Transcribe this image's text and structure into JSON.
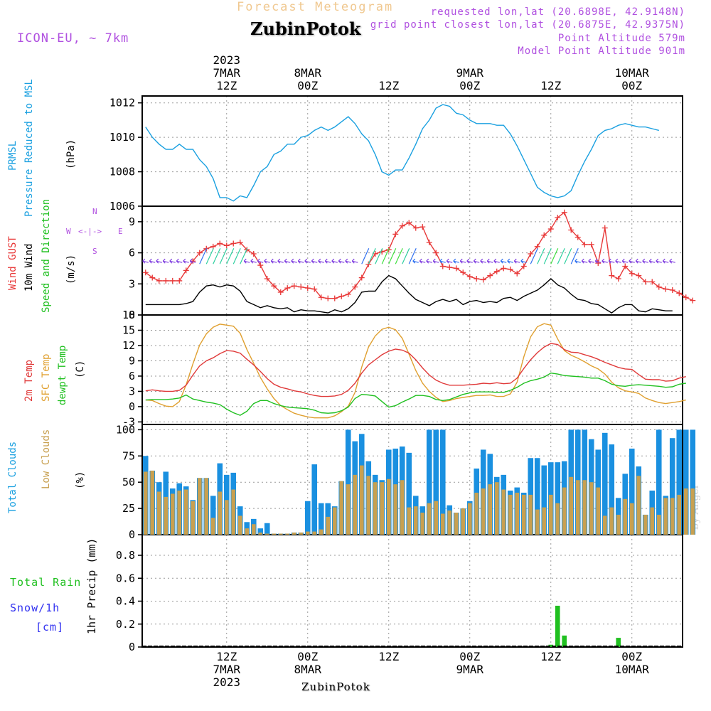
{
  "header": {
    "source": "Forecast Meteogram",
    "title": "ZubinPotok",
    "model": "ICON-EU, ~ 7km",
    "requested": "requested lon,lat (20.6898E, 42.9148N)",
    "closest": "grid point closest lon,lat (20.6875E, 42.9375N)",
    "point_alt": "Point Altitude 579m",
    "model_alt": "Model Point Altitude 901m"
  },
  "time_axis": {
    "top_labels": [
      {
        "lines": [
          "2023",
          "7MAR",
          "12Z"
        ]
      },
      {
        "lines": [
          "8MAR",
          "00Z"
        ]
      },
      {
        "lines": [
          "12Z"
        ]
      },
      {
        "lines": [
          "9MAR",
          "00Z"
        ]
      },
      {
        "lines": [
          "12Z"
        ]
      },
      {
        "lines": [
          "10MAR",
          "00Z"
        ]
      }
    ],
    "bottom_labels": [
      {
        "lines": [
          "12Z",
          "7MAR",
          "2023"
        ]
      },
      {
        "lines": [
          "00Z",
          "8MAR"
        ]
      },
      {
        "lines": [
          "12Z"
        ]
      },
      {
        "lines": [
          "00Z",
          "9MAR"
        ]
      },
      {
        "lines": [
          "12Z"
        ]
      },
      {
        "lines": [
          "00Z",
          "10MAR"
        ]
      }
    ],
    "station_label": "ZubinPotok"
  },
  "watermark": "by Angel",
  "colors": {
    "pressure": "#1aa0e0",
    "gust": "#e83838",
    "wind": "#000000",
    "t2m": "#e03a3a",
    "tsfc": "#e0a030",
    "dewpt": "#20c020",
    "total_clouds": "#1a90e0",
    "low_clouds": "#c8a050",
    "rain": "#20c020",
    "snow": "#3030f0",
    "label_purple": "#b050e0"
  },
  "panels": {
    "pressure": {
      "label1": "PRMSL",
      "label2": "Pressure Reduced to MSL",
      "unit": "(hPa)"
    },
    "wind": {
      "label_gust": "Wind GUST",
      "label_wind": "10m Wind",
      "label_dir": "Speed and Direction",
      "unit": "(m/s)",
      "compass": {
        "n": "N",
        "s": "S",
        "w": "W",
        "e": "E",
        "arrows": "<-|->"
      }
    },
    "temp": {
      "label_t2m": "2m Temp",
      "label_tsfc": "SFC Temp",
      "label_dew": "dewpt Temp",
      "unit": "(C)"
    },
    "clouds": {
      "label_total": "Total Clouds",
      "label_low": "Low Clouds",
      "unit": "(%)"
    },
    "precip": {
      "label_rain": "Total  Rain",
      "label_snow": "Snow/1h",
      "label_cm": "[cm]",
      "label_axis": "1hr Precip (mm)"
    }
  },
  "chart_data": [
    {
      "type": "line",
      "title": "PRMSL Pressure Reduced to MSL",
      "ylabel": "hPa",
      "x_hours": "0..63 (hourly from 7MAR 00Z)",
      "ylim": [
        1006,
        1012.4
      ],
      "yticks": [
        1006,
        1008,
        1010,
        1012
      ],
      "series": [
        {
          "name": "PRMSL",
          "values": [
            1010.6,
            1010.0,
            1009.6,
            1009.3,
            1009.3,
            1009.6,
            1009.3,
            1009.3,
            1008.7,
            1008.3,
            1007.6,
            1006.5,
            1006.5,
            1006.3,
            1006.6,
            1006.5,
            1007.2,
            1008.0,
            1008.3,
            1009.0,
            1009.2,
            1009.6,
            1009.6,
            1010.0,
            1010.1,
            1010.4,
            1010.6,
            1010.4,
            1010.6,
            1010.9,
            1011.2,
            1010.8,
            1010.2,
            1009.8,
            1009.0,
            1008.0,
            1007.8,
            1008.1,
            1008.1,
            1008.8,
            1009.6,
            1010.5,
            1011.0,
            1011.7,
            1011.9,
            1011.8,
            1011.4,
            1011.3,
            1011.0,
            1010.8,
            1010.8,
            1010.8,
            1010.7,
            1010.7,
            1010.2,
            1009.5,
            1008.7,
            1007.9,
            1007.1,
            1006.8,
            1006.6,
            1006.5,
            1006.6,
            1006.9,
            1007.8,
            1008.6,
            1009.3,
            1010.1,
            1010.4,
            1010.5,
            1010.7,
            1010.8,
            1010.7,
            1010.6,
            1010.6,
            1010.5,
            1010.4
          ]
        }
      ]
    },
    {
      "type": "line",
      "title": "Wind GUST / 10m Wind Speed and Direction",
      "ylabel": "m/s",
      "ylim": [
        0,
        10.5
      ],
      "yticks": [
        0,
        3,
        6,
        9
      ],
      "series": [
        {
          "name": "Wind GUST",
          "values": [
            4.1,
            3.6,
            3.3,
            3.3,
            3.3,
            3.3,
            4.3,
            5.2,
            6.0,
            6.4,
            6.6,
            6.9,
            6.7,
            6.9,
            7.0,
            6.3,
            5.9,
            4.8,
            3.5,
            2.8,
            2.2,
            2.6,
            2.8,
            2.7,
            2.6,
            2.5,
            1.7,
            1.6,
            1.6,
            1.8,
            2.0,
            2.7,
            3.6,
            4.9,
            5.9,
            6.1,
            6.3,
            7.8,
            8.6,
            8.9,
            8.4,
            8.5,
            7.0,
            6.0,
            4.7,
            4.6,
            4.5,
            4.1,
            3.7,
            3.5,
            3.4,
            3.8,
            4.2,
            4.5,
            4.4,
            4.0,
            4.7,
            5.9,
            6.6,
            7.7,
            8.3,
            9.4,
            9.9,
            8.2,
            7.5,
            6.8,
            6.8,
            5.0,
            8.4,
            3.8,
            3.5,
            4.7,
            4.0,
            3.8,
            3.2,
            3.2,
            2.7,
            2.5,
            2.4,
            2.1,
            1.7,
            1.4
          ]
        },
        {
          "name": "10m Wind",
          "values": [
            1.0,
            1.0,
            1.0,
            1.0,
            1.0,
            1.0,
            1.1,
            1.3,
            2.2,
            2.8,
            2.9,
            2.7,
            2.9,
            2.8,
            2.3,
            1.3,
            1.0,
            0.7,
            0.9,
            0.7,
            0.6,
            0.7,
            0.3,
            0.5,
            0.4,
            0.4,
            0.3,
            0.2,
            0.5,
            0.3,
            0.6,
            1.2,
            2.2,
            2.3,
            2.3,
            3.2,
            3.8,
            3.5,
            2.8,
            2.1,
            1.5,
            1.2,
            0.9,
            1.3,
            1.5,
            1.3,
            1.5,
            1.0,
            1.3,
            1.4,
            1.2,
            1.3,
            1.2,
            1.6,
            1.7,
            1.4,
            1.8,
            2.1,
            2.4,
            2.9,
            3.5,
            2.9,
            2.6,
            2.0,
            1.5,
            1.4,
            1.1,
            1.0,
            0.6,
            0.2,
            0.7,
            1.0,
            1.0,
            0.4,
            0.3,
            0.6,
            0.5,
            0.4,
            0.4
          ]
        }
      ]
    },
    {
      "type": "line",
      "title": "2m Temp / SFC Temp / dewpt Temp",
      "ylabel": "C",
      "ylim": [
        -3.5,
        18
      ],
      "yticks": [
        -3,
        0,
        3,
        6,
        9,
        12,
        15,
        18
      ],
      "series": [
        {
          "name": "2m Temp",
          "values": [
            3.1,
            3.3,
            3.1,
            3.0,
            3.0,
            3.2,
            4.2,
            6.2,
            8.0,
            9.0,
            9.6,
            10.4,
            11.0,
            10.9,
            10.5,
            9.3,
            8.2,
            6.9,
            5.5,
            4.4,
            3.8,
            3.5,
            3.1,
            2.9,
            2.5,
            2.2,
            2.0,
            2.0,
            2.1,
            2.4,
            3.2,
            4.6,
            6.6,
            8.2,
            9.2,
            10.2,
            10.9,
            11.3,
            11.1,
            10.5,
            9.2,
            7.6,
            6.2,
            5.2,
            4.6,
            4.2,
            4.2,
            4.2,
            4.3,
            4.4,
            4.6,
            4.5,
            4.7,
            4.5,
            4.6,
            5.6,
            7.5,
            9.2,
            10.6,
            11.7,
            12.4,
            12.2,
            11.2,
            10.7,
            10.6,
            10.2,
            9.8,
            9.3,
            8.7,
            8.2,
            7.7,
            7.4,
            7.3,
            6.3,
            5.4,
            5.3,
            5.3,
            5.0,
            5.1,
            5.6,
            5.9
          ]
        },
        {
          "name": "SFC Temp",
          "values": [
            1.3,
            1.2,
            0.6,
            0.1,
            0.0,
            1.0,
            4.3,
            8.4,
            12.1,
            14.3,
            15.6,
            16.2,
            16.0,
            15.8,
            14.4,
            11.2,
            8.5,
            5.7,
            3.5,
            1.6,
            0.2,
            -0.6,
            -1.3,
            -1.7,
            -2.0,
            -2.2,
            -2.2,
            -2.2,
            -1.8,
            -1.0,
            0.1,
            2.8,
            7.8,
            11.7,
            13.9,
            15.2,
            15.6,
            15.1,
            13.4,
            10.3,
            7.1,
            4.6,
            3.0,
            1.8,
            1.0,
            1.2,
            1.6,
            1.8,
            2.0,
            2.2,
            2.2,
            2.3,
            2.0,
            2.0,
            2.5,
            4.8,
            9.8,
            13.7,
            15.7,
            16.3,
            16.0,
            13.3,
            11.0,
            10.1,
            9.5,
            8.8,
            8.0,
            7.4,
            6.4,
            4.8,
            3.7,
            3.1,
            2.9,
            2.6,
            1.7,
            1.2,
            0.8,
            0.6,
            0.8,
            1.0,
            1.3
          ]
        },
        {
          "name": "dewpt Temp",
          "values": [
            1.3,
            1.4,
            1.4,
            1.4,
            1.5,
            1.7,
            2.3,
            1.5,
            1.2,
            0.9,
            0.7,
            0.4,
            -0.5,
            -1.2,
            -1.7,
            -0.9,
            0.6,
            1.2,
            1.2,
            0.6,
            0.2,
            -0.1,
            -0.2,
            -0.3,
            -0.4,
            -0.7,
            -1.2,
            -1.3,
            -1.2,
            -0.8,
            -0.1,
            1.6,
            2.4,
            2.3,
            2.1,
            1.0,
            -0.1,
            0.2,
            0.9,
            1.5,
            2.2,
            2.2,
            2.0,
            1.4,
            1.2,
            1.4,
            1.9,
            2.4,
            2.7,
            2.9,
            2.9,
            2.9,
            2.8,
            2.8,
            3.2,
            3.8,
            4.6,
            5.1,
            5.4,
            5.8,
            6.6,
            6.4,
            6.1,
            6.0,
            5.9,
            5.8,
            5.6,
            5.6,
            5.1,
            4.4,
            4.1,
            4.0,
            4.2,
            4.3,
            4.2,
            4.1,
            4.0,
            3.8,
            3.9,
            4.4,
            4.6
          ]
        }
      ]
    },
    {
      "type": "bar",
      "title": "Total Clouds / Low Clouds",
      "ylabel": "%",
      "ylim": [
        0,
        105
      ],
      "yticks": [
        0,
        25,
        50,
        75,
        100
      ],
      "series": [
        {
          "name": "Total Clouds",
          "values": [
            75,
            61,
            50,
            60,
            44,
            49,
            46,
            33,
            54,
            54,
            37,
            68,
            57,
            59,
            27,
            12,
            15,
            6,
            11,
            1,
            1,
            1,
            2,
            2,
            32,
            67,
            30,
            30,
            27,
            51,
            100,
            89,
            96,
            70,
            57,
            52,
            81,
            82,
            84,
            78,
            37,
            27,
            100,
            100,
            100,
            28,
            21,
            25,
            32,
            63,
            81,
            77,
            55,
            57,
            42,
            45,
            40,
            73,
            73,
            66,
            69,
            69,
            70,
            100,
            100,
            100,
            91,
            81,
            97,
            86,
            35,
            58,
            82,
            65,
            19,
            42,
            100,
            37,
            92,
            100,
            100,
            100
          ]
        },
        {
          "name": "Low Clouds",
          "values": [
            60,
            61,
            41,
            36,
            39,
            42,
            43,
            32,
            54,
            54,
            16,
            41,
            33,
            43,
            18,
            6,
            10,
            2,
            1,
            1,
            1,
            1,
            2,
            2,
            3,
            3,
            5,
            17,
            26,
            51,
            48,
            57,
            66,
            56,
            50,
            50,
            53,
            48,
            52,
            26,
            27,
            21,
            30,
            32,
            20,
            23,
            21,
            25,
            30,
            40,
            44,
            48,
            50,
            43,
            38,
            40,
            38,
            38,
            24,
            26,
            38,
            30,
            45,
            55,
            52,
            52,
            50,
            45,
            18,
            26,
            19,
            34,
            30,
            56,
            19,
            26,
            19,
            35,
            35,
            38,
            44,
            44
          ]
        }
      ]
    },
    {
      "type": "bar",
      "title": "1hr Precip",
      "ylabel": "1hr Precip (mm)",
      "ylim": [
        0,
        0.98
      ],
      "yticks": [
        0,
        0.2,
        0.4,
        0.6,
        0.8
      ],
      "series": [
        {
          "name": "Total Rain",
          "points": [
            {
              "hour": 60,
              "value": 0.02
            },
            {
              "hour": 61,
              "value": 0.36
            },
            {
              "hour": 62,
              "value": 0.1
            },
            {
              "hour": 70,
              "value": 0.08
            }
          ]
        }
      ]
    }
  ]
}
